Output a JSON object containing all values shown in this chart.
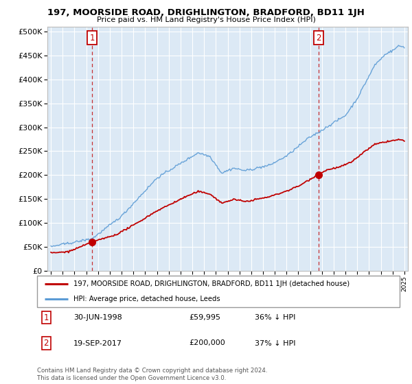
{
  "title": "197, MOORSIDE ROAD, DRIGHLINGTON, BRADFORD, BD11 1JH",
  "subtitle": "Price paid vs. HM Land Registry's House Price Index (HPI)",
  "legend_line1": "197, MOORSIDE ROAD, DRIGHLINGTON, BRADFORD, BD11 1JH (detached house)",
  "legend_line2": "HPI: Average price, detached house, Leeds",
  "footnote": "Contains HM Land Registry data © Crown copyright and database right 2024.\nThis data is licensed under the Open Government Licence v3.0.",
  "point1_date": "30-JUN-1998",
  "point1_price": "£59,995",
  "point1_hpi": "36% ↓ HPI",
  "point1_x": 1998.5,
  "point1_y": 59995,
  "point2_date": "19-SEP-2017",
  "point2_price": "£200,000",
  "point2_hpi": "37% ↓ HPI",
  "point2_x": 2017.72,
  "point2_y": 200000,
  "hpi_color": "#5b9bd5",
  "price_color": "#c00000",
  "chart_bg_color": "#dce9f5",
  "background_color": "#ffffff",
  "grid_color": "#ffffff",
  "ylim": [
    0,
    510000
  ],
  "yticks": [
    0,
    50000,
    100000,
    150000,
    200000,
    250000,
    300000,
    350000,
    400000,
    450000,
    500000
  ],
  "xlim": [
    1994.7,
    2025.3
  ]
}
